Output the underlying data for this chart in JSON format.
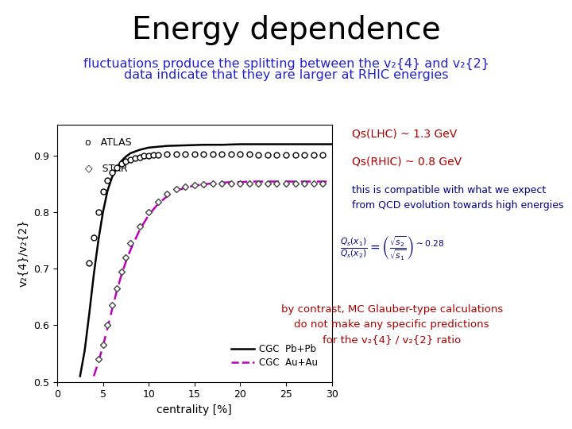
{
  "title": "Energy dependence",
  "title_fontsize": 28,
  "subtitle_line1": "fluctuations produce the splitting between the v₂{4} and v₂{2}",
  "subtitle_line2": "data indicate that they are larger at RHIC energies",
  "subtitle_color": "#2222cc",
  "subtitle_fontsize": 11.5,
  "xlabel": "centrality [%]",
  "ylabel": "v₂{4}/v₂{2}",
  "xlim": [
    0,
    30
  ],
  "ylim": [
    0.5,
    0.955
  ],
  "yticks": [
    0.5,
    0.6,
    0.7,
    0.8,
    0.9
  ],
  "xticks": [
    0,
    5,
    10,
    15,
    20,
    25,
    30
  ],
  "atlas_x": [
    3.5,
    4.0,
    4.5,
    5.0,
    5.5,
    6.0,
    6.5,
    7.0,
    7.5,
    8.0,
    8.5,
    9.0,
    9.5,
    10.0,
    10.5,
    11.0,
    12.0,
    13.0,
    14.0,
    15.0,
    16.0,
    17.0,
    18.0,
    19.0,
    20.0,
    21.0,
    22.0,
    23.0,
    24.0,
    25.0,
    26.0,
    27.0,
    28.0,
    29.0
  ],
  "atlas_y": [
    0.71,
    0.755,
    0.8,
    0.836,
    0.856,
    0.87,
    0.878,
    0.886,
    0.89,
    0.893,
    0.895,
    0.897,
    0.899,
    0.9,
    0.901,
    0.901,
    0.902,
    0.903,
    0.903,
    0.903,
    0.903,
    0.903,
    0.902,
    0.902,
    0.902,
    0.902,
    0.901,
    0.901,
    0.901,
    0.901,
    0.901,
    0.901,
    0.901,
    0.901
  ],
  "star_x": [
    4.5,
    5.0,
    5.5,
    6.0,
    6.5,
    7.0,
    7.5,
    8.0,
    9.0,
    10.0,
    11.0,
    12.0,
    13.0,
    14.0,
    15.0,
    16.0,
    17.0,
    18.0,
    19.0,
    20.0,
    21.0,
    22.0,
    23.0,
    24.0,
    25.0,
    26.0,
    27.0,
    28.0,
    29.0
  ],
  "star_y": [
    0.54,
    0.565,
    0.6,
    0.635,
    0.665,
    0.695,
    0.72,
    0.745,
    0.775,
    0.8,
    0.818,
    0.832,
    0.84,
    0.845,
    0.848,
    0.849,
    0.85,
    0.85,
    0.85,
    0.85,
    0.85,
    0.85,
    0.85,
    0.85,
    0.85,
    0.85,
    0.85,
    0.85,
    0.85
  ],
  "cgc_pb_x": [
    2.5,
    3.0,
    3.5,
    4.0,
    4.5,
    5.0,
    5.5,
    6.0,
    6.5,
    7.0,
    7.5,
    8.0,
    9.0,
    10.0,
    12.0,
    14.0,
    16.0,
    18.0,
    20.0,
    22.0,
    24.0,
    26.0,
    28.0,
    30.0
  ],
  "cgc_pb_y": [
    0.51,
    0.555,
    0.62,
    0.69,
    0.75,
    0.8,
    0.838,
    0.862,
    0.878,
    0.89,
    0.898,
    0.904,
    0.91,
    0.914,
    0.917,
    0.918,
    0.919,
    0.919,
    0.92,
    0.92,
    0.92,
    0.92,
    0.92,
    0.92
  ],
  "cgc_au_x": [
    4.0,
    4.5,
    5.0,
    5.5,
    6.0,
    6.5,
    7.0,
    7.5,
    8.0,
    9.0,
    10.0,
    11.0,
    12.0,
    13.0,
    14.0,
    15.0,
    16.0,
    17.0,
    18.0,
    19.0,
    20.0,
    21.0,
    22.0,
    24.0,
    26.0,
    28.0,
    30.0
  ],
  "cgc_au_y": [
    0.51,
    0.535,
    0.563,
    0.595,
    0.628,
    0.66,
    0.688,
    0.712,
    0.733,
    0.768,
    0.795,
    0.814,
    0.828,
    0.838,
    0.843,
    0.847,
    0.849,
    0.851,
    0.852,
    0.853,
    0.853,
    0.854,
    0.854,
    0.854,
    0.854,
    0.854,
    0.854
  ],
  "annotation_color_red": "#aa0000",
  "annotation_color_blue": "#000088",
  "plot_bg": "white",
  "fig_bg": "white"
}
